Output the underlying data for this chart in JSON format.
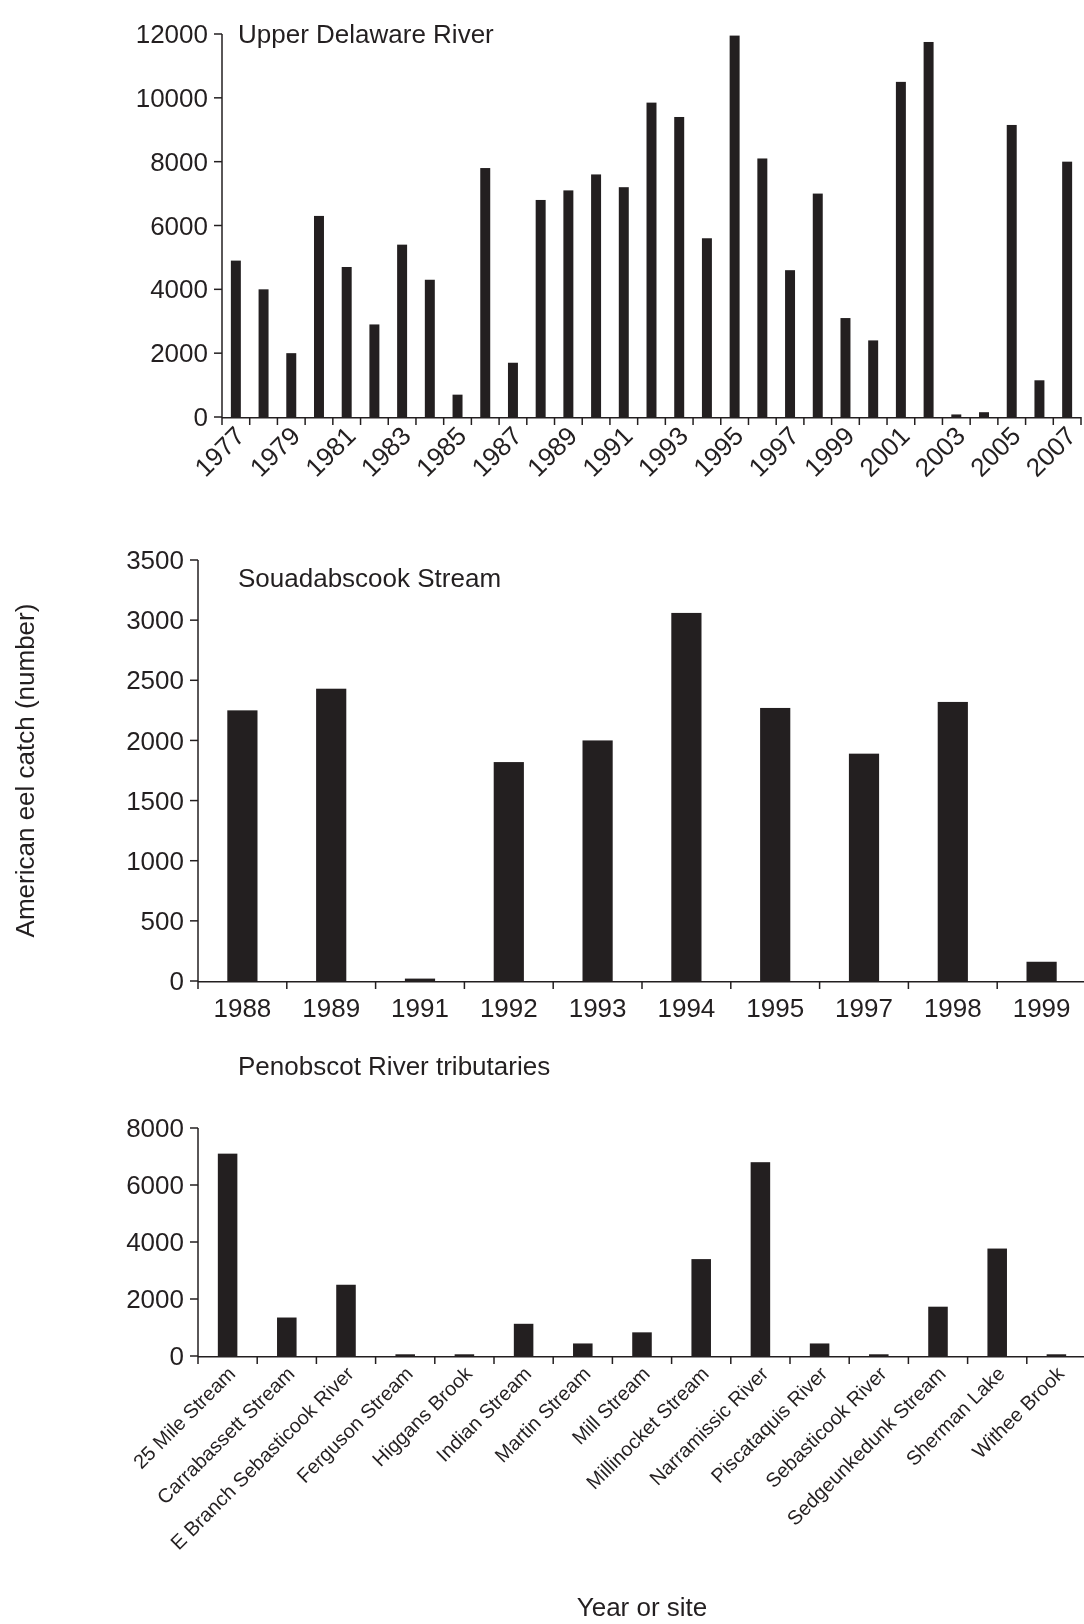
{
  "chart_data": [
    {
      "type": "bar",
      "title": "Upper Delaware River",
      "categories": [
        "1977",
        null,
        "1979",
        null,
        "1981",
        null,
        "1983",
        null,
        "1985",
        null,
        "1987",
        null,
        "1989",
        null,
        "1991",
        null,
        "1993",
        null,
        "1995",
        null,
        "1997",
        null,
        "1999",
        null,
        "2001",
        null,
        "2003",
        null,
        "2005",
        null,
        "2007"
      ],
      "values": [
        4900,
        4000,
        2000,
        6300,
        4700,
        2900,
        5400,
        4300,
        700,
        7800,
        1700,
        6800,
        7100,
        7600,
        7200,
        9850,
        9400,
        5600,
        11950,
        8100,
        4600,
        7000,
        3100,
        2400,
        10500,
        11750,
        80,
        150,
        9150,
        1150,
        8000
      ],
      "color": "#231f20",
      "ylim": [
        0,
        12000
      ],
      "yticks": [
        0,
        2000,
        4000,
        6000,
        8000,
        10000,
        12000
      ],
      "grid": false
    },
    {
      "type": "bar",
      "title": "Souadabscook Stream",
      "ylabel": "American eel catch (number)",
      "categories": [
        "1988",
        "1989",
        "1991",
        "1992",
        "1993",
        "1994",
        "1995",
        "1997",
        "1998",
        "1999"
      ],
      "values": [
        2250,
        2430,
        20,
        1820,
        2000,
        3060,
        2270,
        1890,
        2320,
        160
      ],
      "color": "#231f20",
      "ylim": [
        0,
        3500
      ],
      "yticks": [
        0,
        500,
        1000,
        1500,
        2000,
        2500,
        3000,
        3500
      ],
      "grid": false
    },
    {
      "type": "bar",
      "title": "Penobscot River tributaries",
      "xlabel": "Year or site",
      "categories": [
        "25 Mile Stream",
        "Carrabassett Stream",
        "E Branch Sebasticook River",
        "Ferguson Stream",
        "Higgans Brook",
        "Indian Stream",
        "Martin Stream",
        "Mill Stream",
        "Millinocket Stream",
        "Narramissic River",
        "Piscataquis River",
        "Sebasticook River",
        "Sedgeunkedunk Stream",
        "Sherman Lake",
        "Withee Brook"
      ],
      "values": [
        7100,
        1350,
        2500,
        60,
        60,
        1130,
        440,
        830,
        3400,
        6800,
        440,
        60,
        1730,
        3770,
        60
      ],
      "color": "#231f20",
      "ylim": [
        0,
        8000
      ],
      "yticks": [
        0,
        2000,
        4000,
        6000,
        8000
      ],
      "grid": false
    }
  ]
}
